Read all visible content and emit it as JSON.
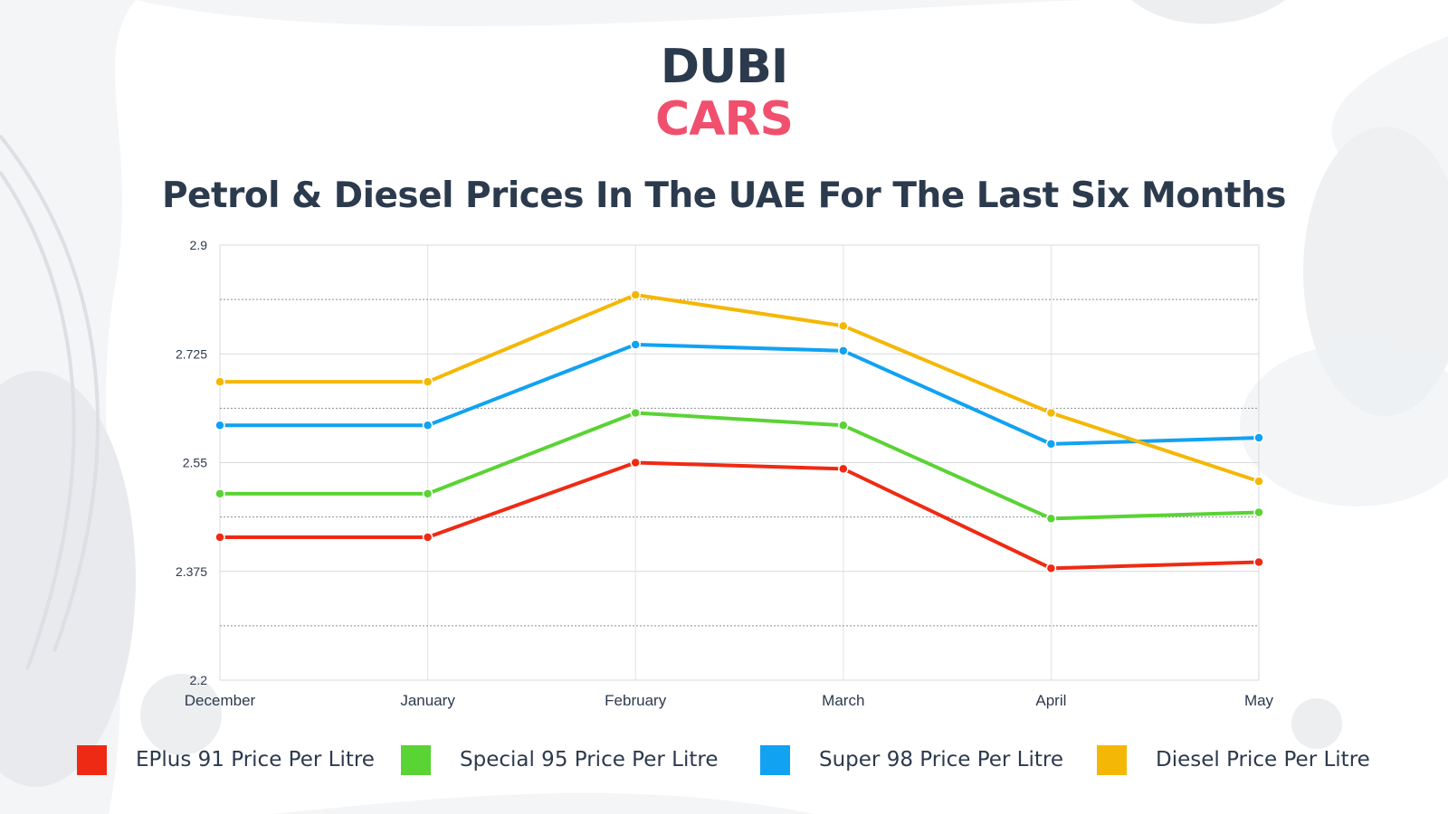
{
  "brand": {
    "line1": "DUBI",
    "line2": "CARS"
  },
  "colors": {
    "eplus": "#ef2a14",
    "special": "#5ad334",
    "super": "#11a2f2",
    "diesel": "#f5b705",
    "dark": "#2c3a4d",
    "accent": "#f0506e"
  },
  "chart_data": {
    "type": "line",
    "title": "Petrol & Diesel Prices In The UAE For The Last Six Months",
    "categories": [
      "December",
      "January",
      "February",
      "March",
      "April",
      "May"
    ],
    "ylim": [
      2.2,
      2.9
    ],
    "yticks": [
      "2.2",
      "2.375",
      "2.55",
      "2.725",
      "2.9"
    ],
    "grid": true,
    "legend_position": "bottom",
    "series": [
      {
        "name": "EPlus 91 Price Per Litre",
        "color": "#ef2a14",
        "values": [
          2.43,
          2.43,
          2.55,
          2.54,
          2.38,
          2.39
        ]
      },
      {
        "name": "Special 95 Price Per Litre",
        "color": "#5ad334",
        "values": [
          2.5,
          2.5,
          2.63,
          2.61,
          2.46,
          2.47
        ]
      },
      {
        "name": "Super 98 Price Per Litre",
        "color": "#11a2f2",
        "values": [
          2.61,
          2.61,
          2.74,
          2.73,
          2.58,
          2.59
        ]
      },
      {
        "name": "Diesel Price Per Litre",
        "color": "#f5b705",
        "values": [
          2.68,
          2.68,
          2.82,
          2.77,
          2.63,
          2.52
        ]
      }
    ]
  }
}
